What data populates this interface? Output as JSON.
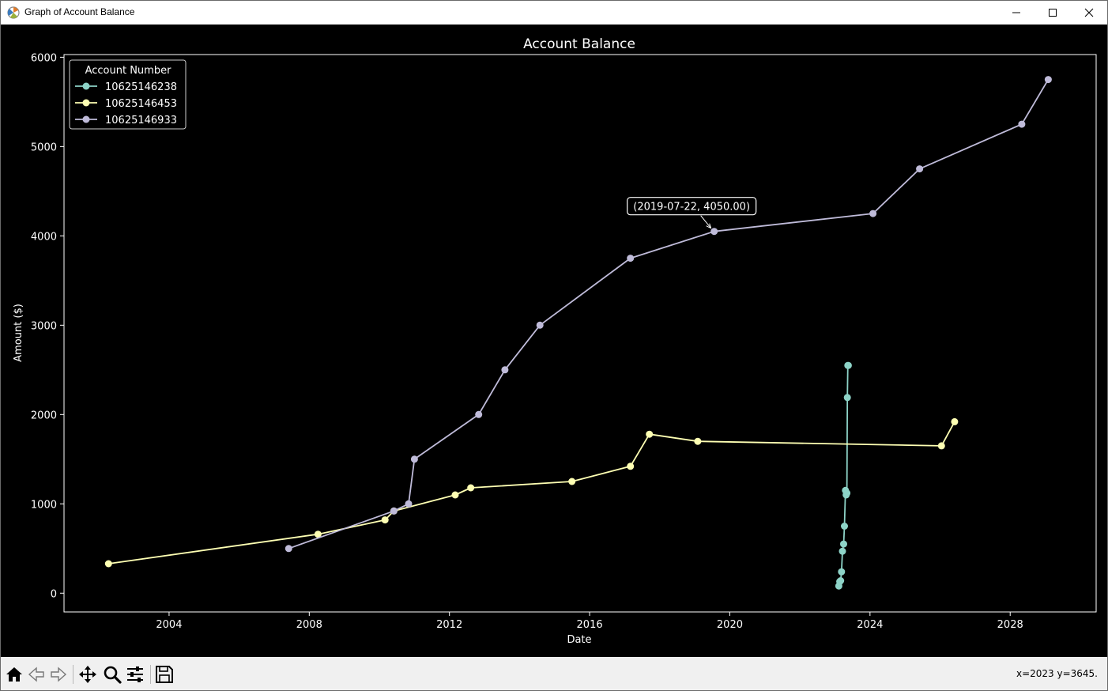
{
  "window": {
    "title": "Graph of Account Balance"
  },
  "toolbar": {
    "buttons": [
      "home-icon",
      "back-icon",
      "forward-icon",
      "pan-icon",
      "zoom-icon",
      "configure-icon",
      "save-icon"
    ],
    "coordinates": "x=2023 y=3645."
  },
  "colors": {
    "background": "#000000",
    "foreground": "#ffffff",
    "series": [
      "#8dd3c7",
      "#feffb3",
      "#bfbbd9"
    ]
  },
  "chart_data": {
    "type": "line",
    "title": "Account Balance",
    "xlabel": "Date",
    "ylabel": "Amount ($)",
    "xlim": [
      "2001-01-01",
      "2030-06-15"
    ],
    "ylim": [
      -210,
      6030
    ],
    "x_ticks": [
      "2004",
      "2008",
      "2012",
      "2016",
      "2020",
      "2024",
      "2028"
    ],
    "y_ticks": [
      "0",
      "1000",
      "2000",
      "3000",
      "4000",
      "5000",
      "6000"
    ],
    "legend": {
      "title": "Account Number",
      "position": "upper-left"
    },
    "series": [
      {
        "name": "10625146238",
        "color": "#8dd3c7",
        "x": [
          "2023-02-10",
          "2023-02-20",
          "2023-03-01",
          "2023-03-10",
          "2023-03-20",
          "2023-04-01",
          "2023-04-10",
          "2023-04-20",
          "2023-04-28",
          "2023-05-05",
          "2023-05-10",
          "2023-05-15",
          "2023-05-20"
        ],
        "y": [
          80,
          130,
          140,
          240,
          470,
          550,
          750,
          1150,
          1100,
          1120,
          2190,
          2550,
          2550
        ]
      },
      {
        "name": "10625146453",
        "color": "#feffb3",
        "x": [
          "2002-04-10",
          "2008-04-01",
          "2010-03-01",
          "2010-06-01",
          "2012-03-01",
          "2012-08-10",
          "2015-07-01",
          "2017-03-01",
          "2017-09-15",
          "2019-02-01",
          "2026-01-15",
          "2026-06-01"
        ],
        "y": [
          330,
          660,
          820,
          920,
          1100,
          1180,
          1250,
          1420,
          1780,
          1700,
          1650,
          1920
        ]
      },
      {
        "name": "10625146933",
        "color": "#bfbbd9",
        "x": [
          "2007-06-01",
          "2010-06-01",
          "2010-11-01",
          "2011-01-01",
          "2012-11-01",
          "2013-08-01",
          "2014-08-01",
          "2017-03-01",
          "2019-07-22",
          "2024-02-01",
          "2025-06-01",
          "2028-05-01",
          "2029-02-01"
        ],
        "y": [
          500,
          920,
          1000,
          1500,
          2000,
          2500,
          3000,
          3750,
          4050,
          4250,
          4750,
          5250,
          5750
        ]
      }
    ],
    "annotation": {
      "text": "(2019-07-22, 4050.00)",
      "x": "2019-07-22",
      "y": 4050
    }
  }
}
